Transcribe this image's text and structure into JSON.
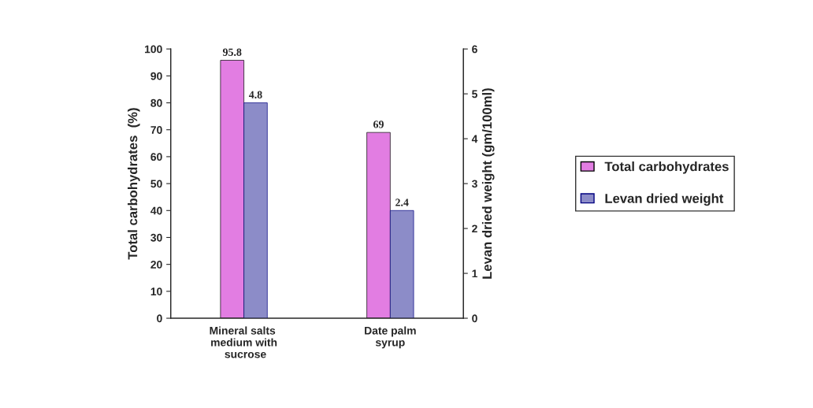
{
  "chart_data": {
    "type": "bar",
    "categories": [
      "Mineral salts medium with sucrose",
      "Date palm syrup"
    ],
    "ylabel": "Total carbohydrates  (%)",
    "y2label": "Levan dried weight (gm/100ml)",
    "series": [
      {
        "name": "Total carbohydrates",
        "color": "#e27de2",
        "values": [
          95.8,
          69
        ]
      },
      {
        "name": "Levan dried weight",
        "color": "#8c8cc8",
        "values": [
          4.8,
          2.4
        ],
        "axis": "y2"
      }
    ],
    "ylim": [
      0,
      100
    ],
    "yticks": [
      0,
      10,
      20,
      30,
      40,
      50,
      60,
      70,
      80,
      90,
      100
    ],
    "y2lim": [
      0,
      6
    ],
    "y2ticks": [
      0,
      1,
      2,
      3,
      4,
      5,
      6
    ],
    "data_labels": true,
    "legend": "right",
    "grid": false
  }
}
